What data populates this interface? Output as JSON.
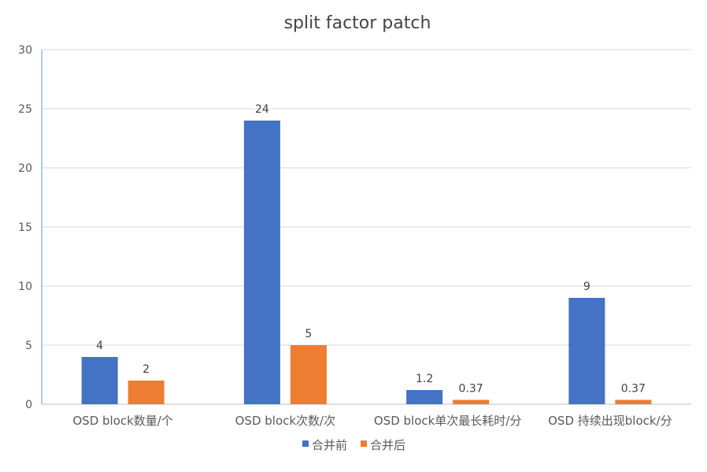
{
  "chart_data": {
    "type": "bar",
    "title": "split factor patch",
    "xlabel": "",
    "ylabel": "",
    "ylim": [
      0,
      30
    ],
    "yticks": [
      0,
      5,
      10,
      15,
      20,
      25,
      30
    ],
    "grid": true,
    "legend_position": "bottom",
    "categories": [
      "OSD block数量/个",
      "OSD block次数/次",
      "OSD block单次最长耗时/分",
      "OSD 持续出现block/分"
    ],
    "series": [
      {
        "name": "合并前",
        "color": "#4472C4",
        "values": [
          4,
          24,
          1.2,
          9
        ],
        "labels": [
          "4",
          "24",
          "1.2",
          "9"
        ]
      },
      {
        "name": "合并后",
        "color": "#ED7D31",
        "values": [
          2,
          5,
          0.37,
          0.37
        ],
        "labels": [
          "2",
          "5",
          "0.37",
          "0.37"
        ]
      }
    ]
  }
}
